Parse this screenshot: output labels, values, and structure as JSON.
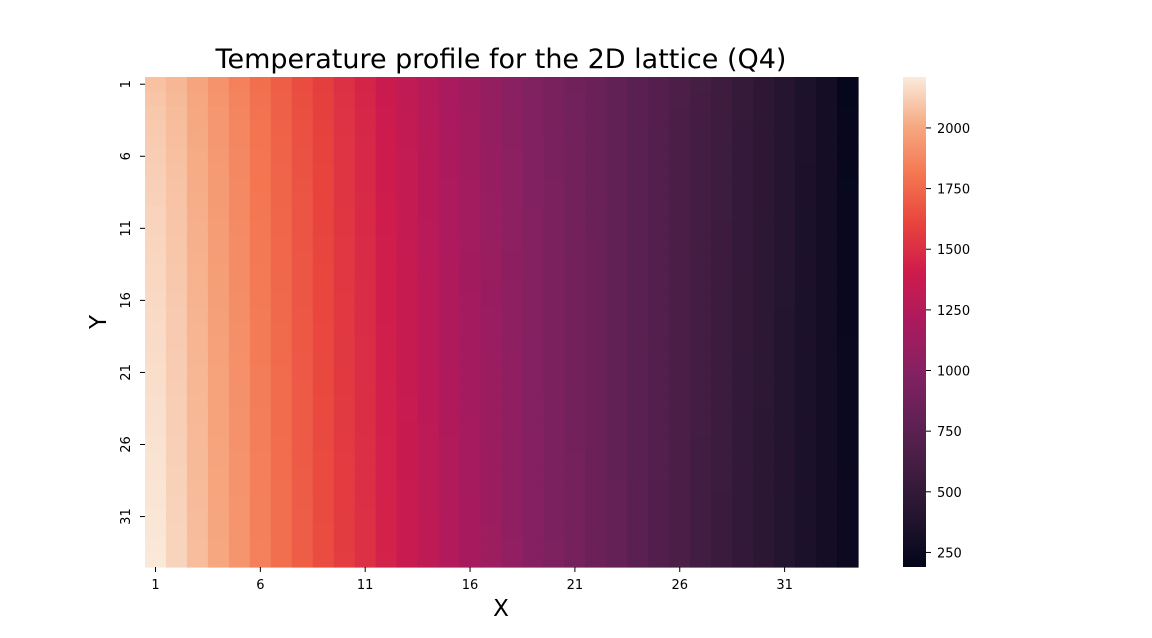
{
  "chart_data": {
    "type": "heatmap",
    "title": "Temperature profile for the 2D lattice (Q4)",
    "xlabel": "X",
    "ylabel": "Y",
    "rows": 34,
    "cols": 34,
    "x_tick_labels": [
      "1",
      "6",
      "11",
      "16",
      "21",
      "26",
      "31"
    ],
    "y_tick_labels": [
      "1",
      "6",
      "11",
      "16",
      "21",
      "26",
      "31"
    ],
    "colormap": "rocket",
    "colorbar": {
      "range": [
        190,
        2210
      ],
      "ticks": [
        250,
        500,
        750,
        1000,
        1250,
        1500,
        1750,
        2000
      ]
    },
    "column_profile_top_row": [
      2080,
      2050,
      1990,
      1920,
      1850,
      1780,
      1710,
      1640,
      1580,
      1510,
      1450,
      1380,
      1320,
      1260,
      1190,
      1130,
      1070,
      1020,
      970,
      920,
      880,
      840,
      790,
      750,
      710,
      660,
      620,
      570,
      520,
      470,
      420,
      360,
      300,
      210
    ],
    "column_profile_bottom_row": [
      2200,
      2140,
      2070,
      2000,
      1930,
      1850,
      1780,
      1710,
      1640,
      1570,
      1510,
      1440,
      1370,
      1310,
      1240,
      1180,
      1120,
      1060,
      1000,
      950,
      900,
      850,
      800,
      750,
      700,
      650,
      600,
      550,
      500,
      450,
      400,
      350,
      300,
      250
    ]
  }
}
